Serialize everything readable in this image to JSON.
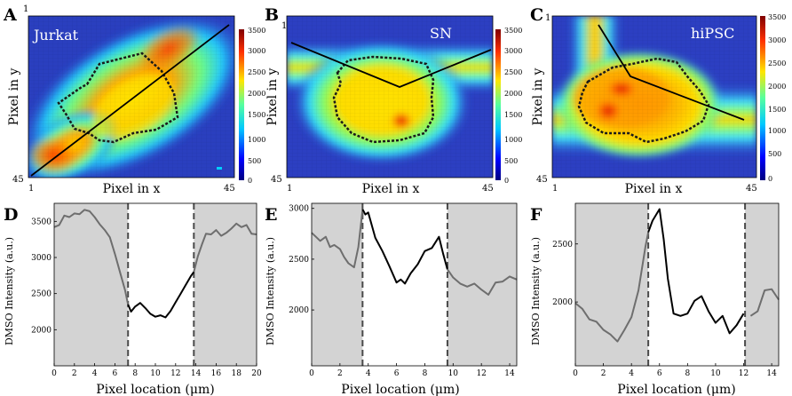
{
  "figure": {
    "top_panels": [
      {
        "letter": "A",
        "title": "Jurkat",
        "ylabel": "Pixel in y",
        "xlabel": "Pixel in x",
        "corner_top": "1",
        "corner_bottom": "45",
        "corner_x_start": "1",
        "corner_x_end": "45",
        "colorbar": {
          "ticks": [
            "3500",
            "3000",
            "2500",
            "2000",
            "1500",
            "1000",
            "500",
            "0"
          ]
        }
      },
      {
        "letter": "B",
        "title": "SN",
        "ylabel": "Pixel in y",
        "xlabel": "Pixel in x",
        "corner_top": "1",
        "corner_bottom": "45",
        "corner_x_start": "1",
        "corner_x_end": "45",
        "colorbar": {
          "ticks": [
            "3500",
            "3000",
            "2500",
            "2000",
            "1500",
            "1000",
            "500",
            "0"
          ]
        }
      },
      {
        "letter": "C",
        "title": "hiPSC",
        "ylabel": "Pixel in y",
        "xlabel": "Pixel in x",
        "corner_top": "1",
        "corner_bottom": "45",
        "corner_x_start": "1",
        "corner_x_end": "45",
        "colorbar": {
          "ticks": [
            "3500",
            "3000",
            "2500",
            "2000",
            "1500",
            "1000",
            "500",
            "0"
          ]
        }
      }
    ],
    "bottom_panels": [
      {
        "letter": "D",
        "ylabel": "DMSO Intensity (a.u.)",
        "xlabel": "Pixel location (μm)",
        "xticks": [
          "0",
          "2",
          "4",
          "6",
          "8",
          "10",
          "12",
          "14",
          "16",
          "18",
          "20"
        ],
        "yticks": [
          "2000",
          "2500",
          "3000",
          "3500"
        ]
      },
      {
        "letter": "E",
        "ylabel": "DMSO Intensity (a.u.)",
        "xlabel": "Pixel location (μm)",
        "xticks": [
          "0",
          "2",
          "4",
          "6",
          "8",
          "10",
          "12",
          "14"
        ],
        "yticks": [
          "2000",
          "2500",
          "3000"
        ]
      },
      {
        "letter": "F",
        "ylabel": "DMSO Intensity (a.u.)",
        "xlabel": "Pixel location (μm)",
        "xticks": [
          "0",
          "2",
          "4",
          "6",
          "8",
          "10",
          "12",
          "14"
        ],
        "yticks": [
          "2000",
          "2500"
        ]
      }
    ]
  },
  "chart_data": [
    {
      "type": "line",
      "panel": "D",
      "xlabel": "Pixel location (μm)",
      "ylabel": "DMSO Intensity (a.u.)",
      "xlim": [
        0,
        20
      ],
      "ylim": [
        1500,
        3750
      ],
      "shaded_regions": [
        [
          0,
          7.3
        ],
        [
          13.8,
          20
        ]
      ],
      "dashed_lines": [
        7.3,
        13.8
      ],
      "x": [
        0,
        0.5,
        1,
        1.5,
        2,
        2.5,
        3,
        3.5,
        4,
        4.5,
        5,
        5.5,
        6,
        6.5,
        7,
        7.3,
        7.6,
        8,
        8.5,
        9,
        9.5,
        10,
        10.5,
        11,
        11.5,
        12,
        12.5,
        13,
        13.5,
        13.8,
        14.2,
        14.6,
        15,
        15.5,
        16,
        16.5,
        17,
        17.5,
        18,
        18.5,
        19,
        19.5,
        20
      ],
      "values": [
        3420,
        3450,
        3580,
        3560,
        3610,
        3600,
        3660,
        3640,
        3560,
        3460,
        3380,
        3280,
        3050,
        2800,
        2550,
        2350,
        2250,
        2320,
        2370,
        2300,
        2220,
        2180,
        2200,
        2170,
        2260,
        2380,
        2500,
        2620,
        2740,
        2800,
        3020,
        3180,
        3330,
        3320,
        3380,
        3300,
        3340,
        3400,
        3470,
        3420,
        3450,
        3330,
        3320
      ]
    },
    {
      "type": "line",
      "panel": "E",
      "xlabel": "Pixel location (μm)",
      "ylabel": "DMSO Intensity (a.u.)",
      "xlim": [
        0,
        14.5
      ],
      "ylim": [
        1450,
        3050
      ],
      "shaded_regions": [
        [
          0,
          3.6
        ],
        [
          9.6,
          14.5
        ]
      ],
      "dashed_lines": [
        3.6,
        9.6
      ],
      "x": [
        0,
        0.3,
        0.6,
        1,
        1.3,
        1.6,
        2,
        2.3,
        2.6,
        3,
        3.3,
        3.6,
        3.8,
        4,
        4.2,
        4.5,
        5,
        5.5,
        6,
        6.3,
        6.6,
        7,
        7.5,
        8,
        8.5,
        9,
        9.3,
        9.6,
        10,
        10.5,
        11,
        11.5,
        12,
        12.5,
        13,
        13.5,
        14,
        14.5
      ],
      "values": [
        2760,
        2720,
        2680,
        2720,
        2620,
        2640,
        2600,
        2520,
        2460,
        2420,
        2620,
        2990,
        2940,
        2960,
        2860,
        2710,
        2580,
        2430,
        2270,
        2300,
        2260,
        2360,
        2450,
        2580,
        2610,
        2720,
        2550,
        2400,
        2320,
        2260,
        2230,
        2260,
        2200,
        2150,
        2270,
        2280,
        2330,
        2300
      ]
    },
    {
      "type": "line",
      "panel": "F",
      "xlabel": "Pixel location (μm)",
      "ylabel": "DMSO Intensity (a.u.)",
      "xlim": [
        0,
        14.5
      ],
      "ylim": [
        1450,
        2850
      ],
      "shaded_regions": [
        [
          0,
          5.2
        ],
        [
          12.1,
          14.5
        ]
      ],
      "dashed_lines": [
        5.2,
        12.1
      ],
      "x": [
        0,
        0.5,
        1,
        1.5,
        2,
        2.5,
        3,
        3.5,
        4,
        4.5,
        5,
        5.2,
        5.5,
        6,
        6.3,
        6.6,
        7,
        7.5,
        8,
        8.5,
        9,
        9.5,
        10,
        10.5,
        11,
        11.5,
        12,
        12.5,
        13,
        13.5,
        14,
        14.5
      ],
      "values": [
        1990,
        1940,
        1850,
        1830,
        1760,
        1720,
        1660,
        1760,
        1870,
        2100,
        2480,
        2600,
        2700,
        2800,
        2540,
        2200,
        1900,
        1880,
        1900,
        2010,
        2050,
        1920,
        1820,
        1880,
        1730,
        1800,
        1900,
        1880,
        1920,
        2100,
        2110,
        2020
      ]
    }
  ]
}
